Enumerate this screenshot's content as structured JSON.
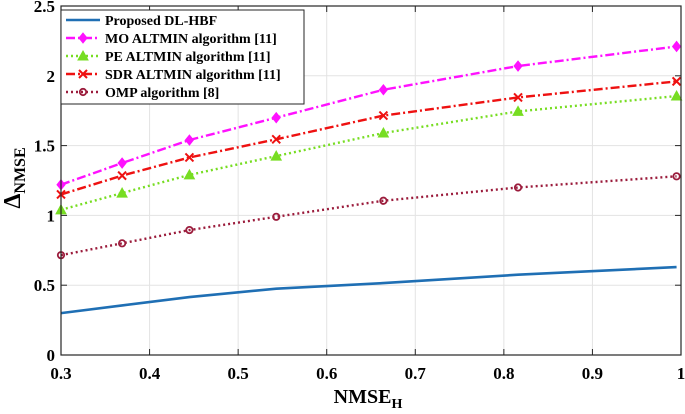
{
  "chart_data": {
    "type": "line",
    "title": "",
    "xlabel": "NMSE",
    "xlabel_sub": "H",
    "ylabel": "Δ",
    "ylabel_sub": "NMSE",
    "xlim": [
      0.3,
      1
    ],
    "ylim": [
      0,
      2.5
    ],
    "xticks": [
      0.3,
      0.4,
      0.5,
      0.6,
      0.7,
      0.8,
      0.9,
      1
    ],
    "xtick_labels": [
      "0.3",
      "0.4",
      "0.5",
      "0.6",
      "0.7",
      "0.8",
      "0.9",
      "1"
    ],
    "yticks": [
      0,
      0.5,
      1,
      1.5,
      2,
      2.5
    ],
    "ytick_labels": [
      "0",
      "0.5",
      "1",
      "1.5",
      "2",
      "2.5"
    ],
    "grid": true,
    "legend_position": "top-left",
    "x": [
      0.3,
      0.369,
      0.445,
      0.543,
      0.664,
      0.816,
      0.995
    ],
    "series": [
      {
        "name": "Proposed DL-HBF",
        "values": [
          0.3,
          0.355,
          0.415,
          0.475,
          0.515,
          0.575,
          0.63
        ],
        "color": "#1f6fb4",
        "dash": "solid",
        "marker": "none"
      },
      {
        "name": "MO ALTMIN algorithm [11]",
        "values": [
          1.22,
          1.375,
          1.54,
          1.7,
          1.9,
          2.07,
          2.21
        ],
        "color": "#ff11ff",
        "dash": "dashdot",
        "marker": "diamond"
      },
      {
        "name": "PE ALTMIN algorithm [11]",
        "values": [
          1.04,
          1.16,
          1.29,
          1.425,
          1.59,
          1.745,
          1.855
        ],
        "color": "#77dd22",
        "dash": "dotted",
        "marker": "triangle"
      },
      {
        "name": "SDR ALTMIN algorithm [11]",
        "values": [
          1.15,
          1.285,
          1.415,
          1.545,
          1.715,
          1.845,
          1.96
        ],
        "color": "#ee1111",
        "dash": "dashdot",
        "marker": "x"
      },
      {
        "name": "OMP algorithm [8]",
        "values": [
          0.715,
          0.8,
          0.895,
          0.99,
          1.105,
          1.2,
          1.28
        ],
        "color": "#9b1c3c",
        "dash": "dotted",
        "marker": "circle"
      }
    ]
  }
}
